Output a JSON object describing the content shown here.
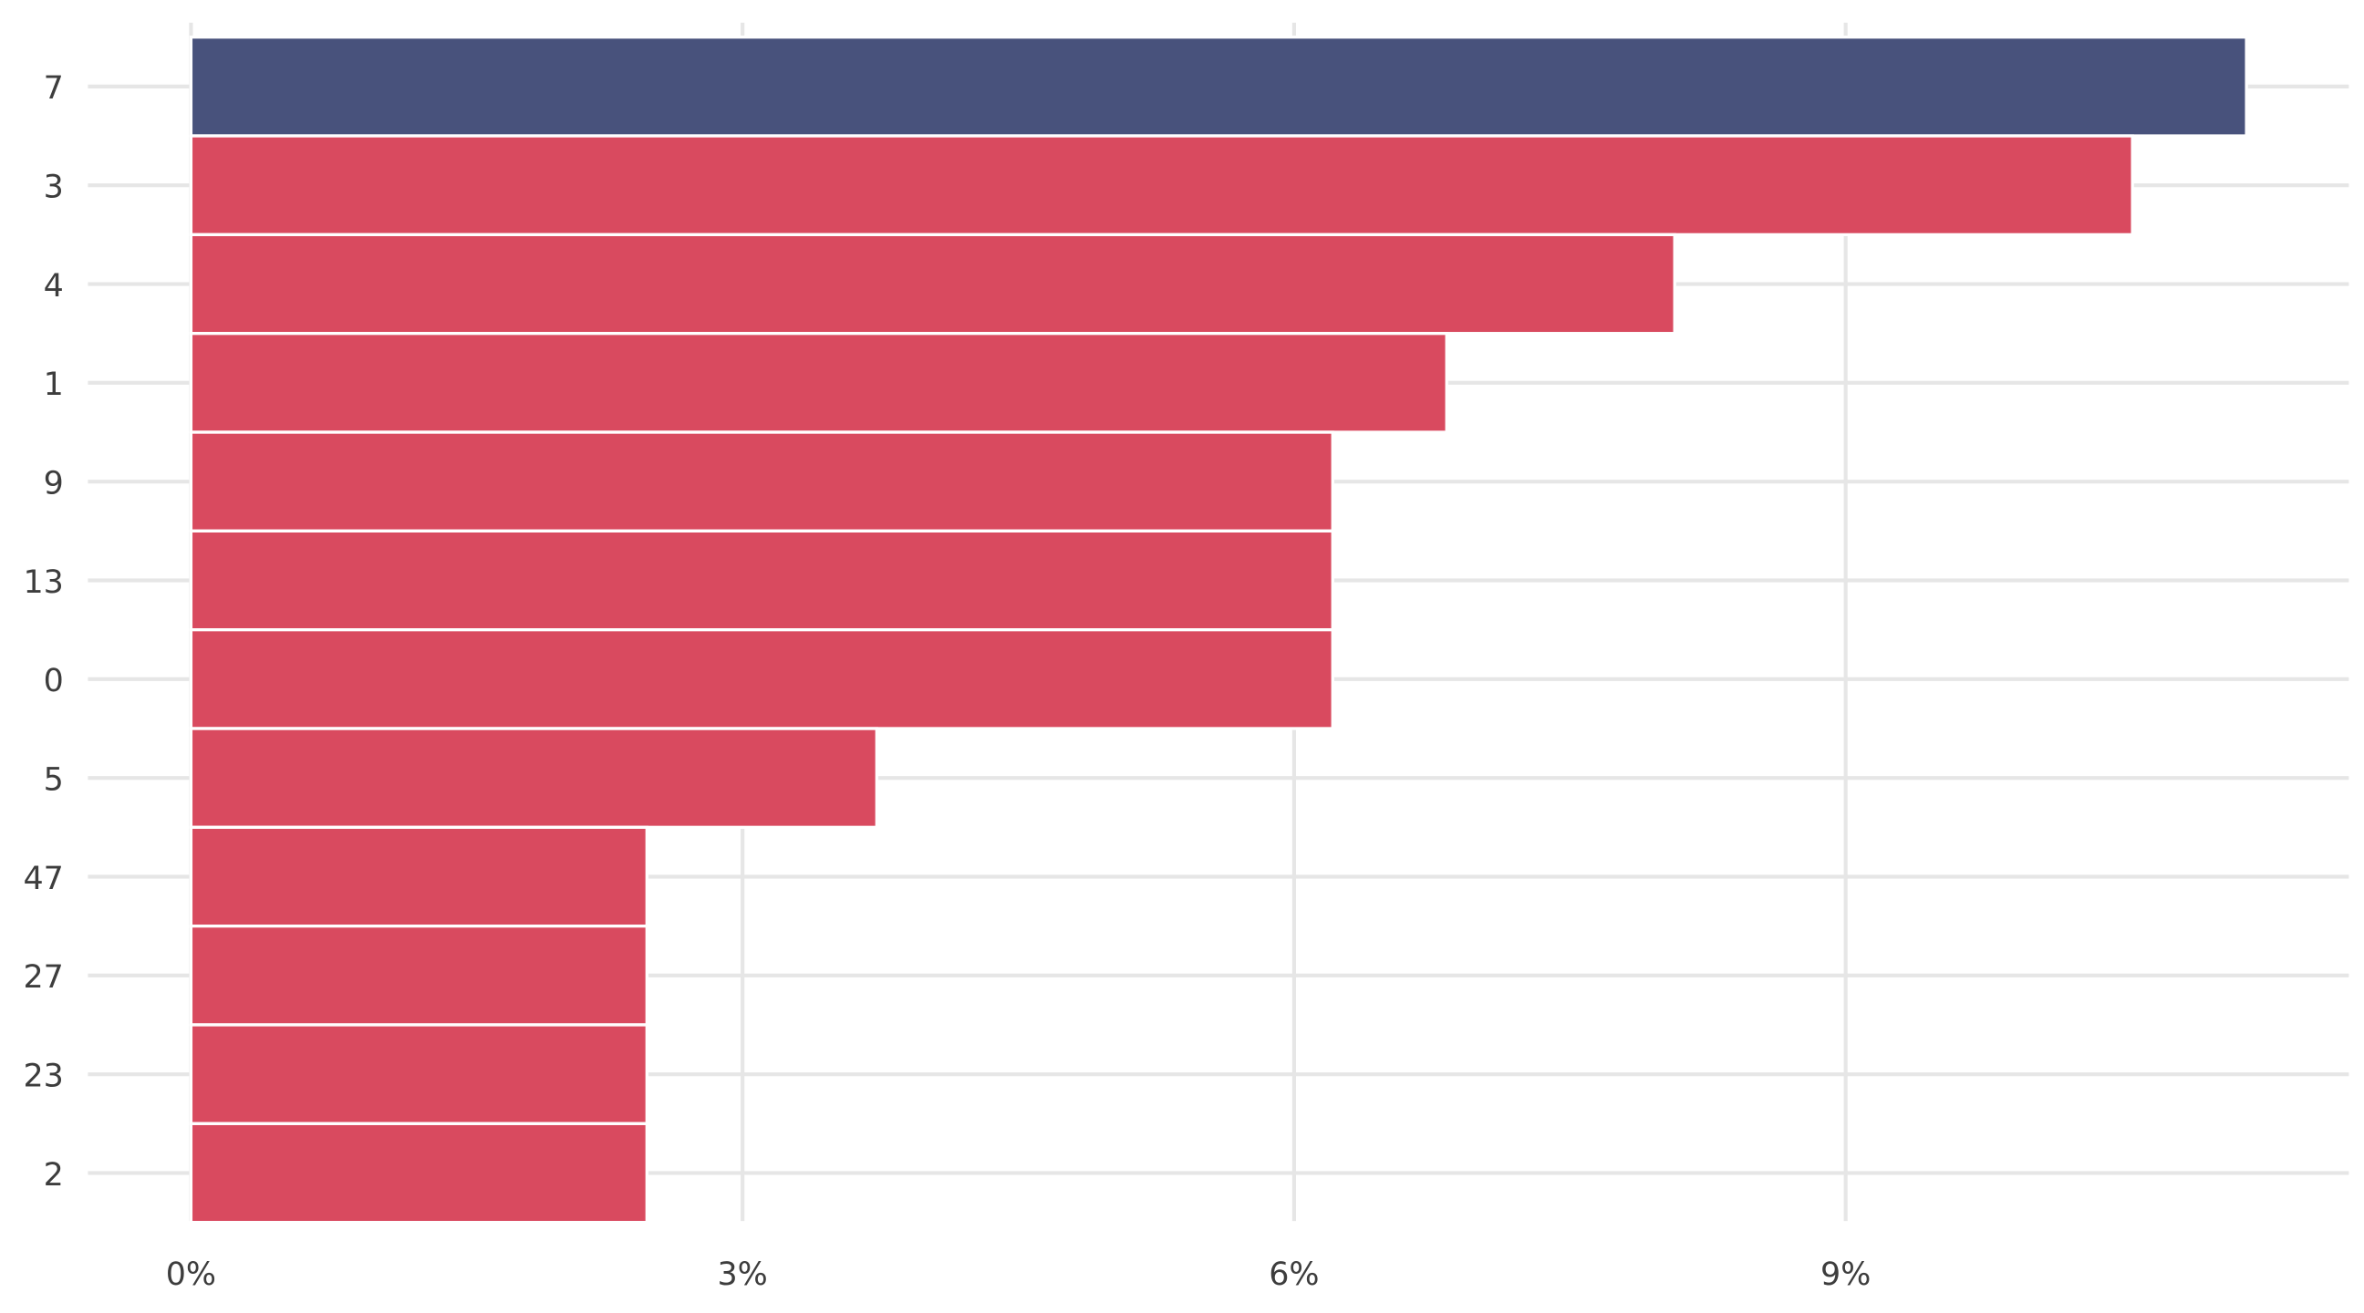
{
  "chart_data": {
    "type": "bar",
    "orientation": "horizontal",
    "title": "",
    "xlabel": "",
    "ylabel": "",
    "categories": [
      "7",
      "3",
      "4",
      "1",
      "9",
      "13",
      "0",
      "5",
      "47",
      "27",
      "23",
      "2"
    ],
    "values": [
      11.18,
      10.56,
      8.07,
      6.83,
      6.21,
      6.21,
      6.21,
      3.73,
      2.48,
      2.48,
      2.48,
      2.48
    ],
    "highlight_index": 0,
    "xlim": [
      0,
      11.7
    ],
    "xticks": [
      0,
      3,
      6,
      9
    ],
    "xtick_labels": [
      "0%",
      "3%",
      "6%",
      "9%"
    ],
    "grid": true,
    "colors": {
      "highlight": "#48527c",
      "default": "#d94a5f",
      "grid": "#e6e6e6"
    }
  }
}
